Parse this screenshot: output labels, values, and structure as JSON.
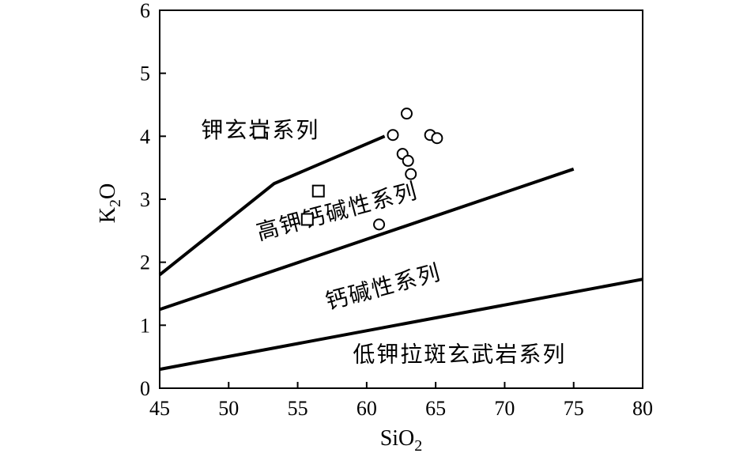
{
  "chart_data": {
    "type": "scatter",
    "xlabel": "SiO",
    "xlabel_sub": "2",
    "ylabel": "K",
    "ylabel_sub": "2",
    "ylabel_tail": "O",
    "xlim": [
      45,
      80
    ],
    "ylim": [
      0,
      6
    ],
    "x_ticks": [
      45,
      50,
      55,
      60,
      65,
      70,
      75,
      80
    ],
    "y_ticks": [
      0,
      1,
      2,
      3,
      4,
      5,
      6
    ],
    "grid": false,
    "legend": "none",
    "boundaries": [
      {
        "points": [
          [
            45,
            1.8
          ],
          [
            53.3,
            3.25
          ],
          [
            61.3,
            4.0
          ]
        ]
      },
      {
        "points": [
          [
            45,
            1.25
          ],
          [
            75,
            3.48
          ]
        ]
      },
      {
        "points": [
          [
            45,
            0.3
          ],
          [
            80,
            1.73
          ]
        ]
      }
    ],
    "region_labels": [
      {
        "text": "钾玄岩系列",
        "x": 48.0,
        "y": 3.98,
        "rotate": 0
      },
      {
        "text": "高钾钙碱性系列",
        "x": 52.2,
        "y": 2.35,
        "rotate": -15
      },
      {
        "text": "钙碱性系列",
        "x": 57.2,
        "y": 1.25,
        "rotate": -15
      },
      {
        "text": "低钾拉斑玄武岩系列",
        "x": 59.0,
        "y": 0.42,
        "rotate": 0
      }
    ],
    "series": [
      {
        "marker": "square",
        "points": [
          [
            52.2,
            4.07
          ],
          [
            56.5,
            3.13
          ],
          [
            55.7,
            2.68
          ]
        ]
      },
      {
        "marker": "circle",
        "points": [
          [
            62.9,
            4.36
          ],
          [
            61.9,
            4.02
          ],
          [
            64.6,
            4.02
          ],
          [
            65.1,
            3.97
          ],
          [
            62.6,
            3.72
          ],
          [
            63.0,
            3.61
          ],
          [
            63.2,
            3.4
          ],
          [
            60.9,
            2.6
          ]
        ]
      }
    ]
  }
}
